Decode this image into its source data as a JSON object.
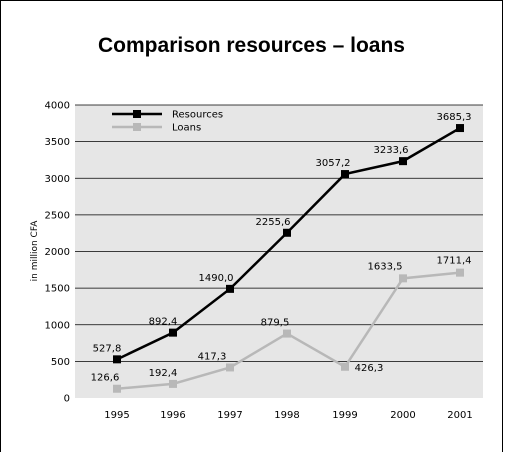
{
  "chart_data": {
    "type": "line",
    "title": "Comparison resources – loans",
    "xlabel": "",
    "ylabel": "in million CFA",
    "x": [
      "1995",
      "1996",
      "1997",
      "1998",
      "1999",
      "2000",
      "2001"
    ],
    "ylim": [
      0,
      4000
    ],
    "yticks": [
      "0",
      "500",
      "1000",
      "1500",
      "2000",
      "2500",
      "3000",
      "3500",
      "4000"
    ],
    "grid": true,
    "legend_position": "top-left",
    "series": [
      {
        "name": "Resources",
        "color": "#000000",
        "values": [
          527.8,
          892.4,
          1490.0,
          2255.6,
          3057.2,
          3233.6,
          3685.3
        ],
        "labels": [
          "527,8",
          "892,4",
          "1490,0",
          "2255,6",
          "3057,2",
          "3233,6",
          "3685,3"
        ]
      },
      {
        "name": "Loans",
        "color": "#b8b8b8",
        "values": [
          126.6,
          192.4,
          417.3,
          879.5,
          426.3,
          1633.5,
          1711.4
        ],
        "labels": [
          "126,6",
          "192,4",
          "417,3",
          "879,5",
          "426,3",
          "1633,5",
          "1711,4"
        ]
      }
    ]
  }
}
